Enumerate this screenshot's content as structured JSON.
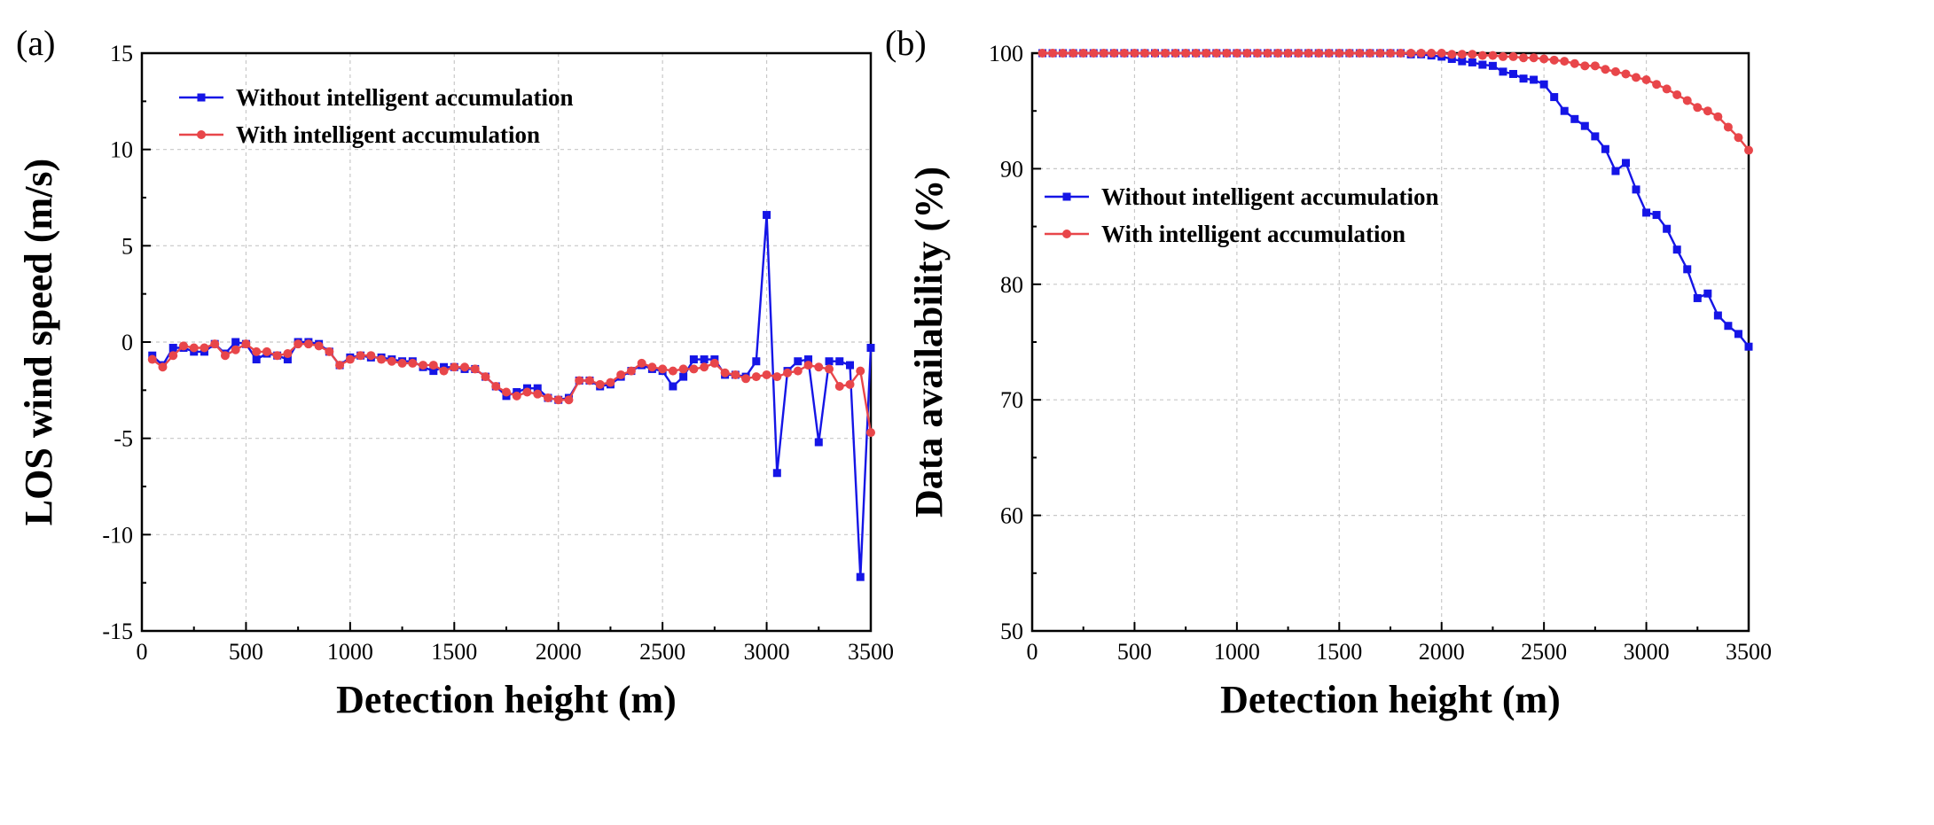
{
  "chart_data": [
    {
      "type": "line",
      "panel_label": "(a)",
      "xlabel": "Detection height (m)",
      "ylabel": "LOS wind speed (m/s)",
      "xlim": [
        0,
        3500
      ],
      "ylim": [
        -15,
        15
      ],
      "xticks": [
        0,
        500,
        1000,
        1500,
        2000,
        2500,
        3000,
        3500
      ],
      "yticks": [
        -15,
        -10,
        -5,
        0,
        5,
        10,
        15
      ],
      "grid": true,
      "legend_position": "top-left",
      "x": [
        50,
        100,
        150,
        200,
        250,
        300,
        350,
        400,
        450,
        500,
        550,
        600,
        650,
        700,
        750,
        800,
        850,
        900,
        950,
        1000,
        1050,
        1100,
        1150,
        1200,
        1250,
        1300,
        1350,
        1400,
        1450,
        1500,
        1550,
        1600,
        1650,
        1700,
        1750,
        1800,
        1850,
        1900,
        1950,
        2000,
        2050,
        2100,
        2150,
        2200,
        2250,
        2300,
        2350,
        2400,
        2450,
        2500,
        2550,
        2600,
        2650,
        2700,
        2750,
        2800,
        2850,
        2900,
        2950,
        3000,
        3050,
        3100,
        3150,
        3200,
        3250,
        3300,
        3350,
        3400,
        3450,
        3500
      ],
      "series": [
        {
          "name": "Without intelligent accumulation",
          "color": "#1515e6",
          "marker": "square",
          "values": [
            -0.7,
            -1.2,
            -0.3,
            -0.3,
            -0.5,
            -0.5,
            -0.1,
            -0.6,
            0.0,
            -0.1,
            -0.9,
            -0.6,
            -0.7,
            -0.9,
            0.0,
            0.0,
            -0.1,
            -0.5,
            -1.2,
            -0.8,
            -0.7,
            -0.8,
            -0.8,
            -0.9,
            -1.0,
            -1.0,
            -1.3,
            -1.5,
            -1.3,
            -1.3,
            -1.4,
            -1.4,
            -1.8,
            -2.3,
            -2.8,
            -2.6,
            -2.4,
            -2.4,
            -2.9,
            -3.0,
            -2.9,
            -2.0,
            -2.0,
            -2.3,
            -2.2,
            -1.8,
            -1.5,
            -1.2,
            -1.4,
            -1.5,
            -2.3,
            -1.8,
            -0.9,
            -0.9,
            -0.9,
            -1.7,
            -1.7,
            -1.8,
            -1.0,
            6.6,
            -6.8,
            -1.5,
            -1.0,
            -0.9,
            -5.2,
            -1.0,
            -1.0,
            -1.2,
            -12.2,
            -0.3
          ]
        },
        {
          "name": "With intelligent accumulation",
          "color": "#e8464a",
          "marker": "circle",
          "values": [
            -0.9,
            -1.3,
            -0.7,
            -0.2,
            -0.3,
            -0.3,
            -0.1,
            -0.7,
            -0.4,
            -0.1,
            -0.5,
            -0.5,
            -0.7,
            -0.6,
            -0.1,
            -0.1,
            -0.2,
            -0.5,
            -1.2,
            -0.9,
            -0.7,
            -0.7,
            -0.9,
            -1.0,
            -1.1,
            -1.1,
            -1.2,
            -1.2,
            -1.5,
            -1.3,
            -1.3,
            -1.4,
            -1.8,
            -2.3,
            -2.6,
            -2.8,
            -2.6,
            -2.7,
            -2.9,
            -3.0,
            -3.0,
            -2.0,
            -2.0,
            -2.2,
            -2.1,
            -1.7,
            -1.5,
            -1.1,
            -1.3,
            -1.4,
            -1.5,
            -1.4,
            -1.4,
            -1.3,
            -1.1,
            -1.6,
            -1.7,
            -1.9,
            -1.8,
            -1.7,
            -1.8,
            -1.6,
            -1.5,
            -1.2,
            -1.3,
            -1.4,
            -2.3,
            -2.2,
            -1.5,
            -4.7
          ]
        }
      ]
    },
    {
      "type": "line",
      "panel_label": "(b)",
      "xlabel": "Detection height (m)",
      "ylabel": "Data availability (%)",
      "xlim": [
        0,
        3500
      ],
      "ylim": [
        50,
        100
      ],
      "xticks": [
        0,
        500,
        1000,
        1500,
        2000,
        2500,
        3000,
        3500
      ],
      "yticks": [
        50,
        60,
        70,
        80,
        90,
        100
      ],
      "grid": true,
      "legend_position": "middle-left",
      "x": [
        50,
        100,
        150,
        200,
        250,
        300,
        350,
        400,
        450,
        500,
        550,
        600,
        650,
        700,
        750,
        800,
        850,
        900,
        950,
        1000,
        1050,
        1100,
        1150,
        1200,
        1250,
        1300,
        1350,
        1400,
        1450,
        1500,
        1550,
        1600,
        1650,
        1700,
        1750,
        1800,
        1850,
        1900,
        1950,
        2000,
        2050,
        2100,
        2150,
        2200,
        2250,
        2300,
        2350,
        2400,
        2450,
        2500,
        2550,
        2600,
        2650,
        2700,
        2750,
        2800,
        2850,
        2900,
        2950,
        3000,
        3050,
        3100,
        3150,
        3200,
        3250,
        3300,
        3350,
        3400,
        3450,
        3500
      ],
      "series": [
        {
          "name": "Without intelligent accumulation",
          "color": "#1515e6",
          "marker": "square",
          "values": [
            100,
            100,
            100,
            100,
            100,
            100,
            100,
            100,
            100,
            100,
            100,
            100,
            100,
            100,
            100,
            100,
            100,
            100,
            100,
            100,
            100,
            100,
            100,
            100,
            100,
            100,
            100,
            100,
            100,
            100,
            100,
            100,
            100,
            100,
            100,
            100,
            99.9,
            99.9,
            99.8,
            99.7,
            99.5,
            99.3,
            99.2,
            99.0,
            98.9,
            98.4,
            98.2,
            97.8,
            97.7,
            97.3,
            96.2,
            95.0,
            94.3,
            93.7,
            92.8,
            91.7,
            89.8,
            90.5,
            88.2,
            86.2,
            86.0,
            84.8,
            83.0,
            81.3,
            78.8,
            79.2,
            77.3,
            76.4,
            75.7,
            74.6
          ]
        },
        {
          "name": "With intelligent accumulation",
          "color": "#e8464a",
          "marker": "circle",
          "values": [
            100,
            100,
            100,
            100,
            100,
            100,
            100,
            100,
            100,
            100,
            100,
            100,
            100,
            100,
            100,
            100,
            100,
            100,
            100,
            100,
            100,
            100,
            100,
            100,
            100,
            100,
            100,
            100,
            100,
            100,
            100,
            100,
            100,
            100,
            100,
            100,
            100,
            100,
            100,
            100,
            99.9,
            99.9,
            99.9,
            99.8,
            99.8,
            99.7,
            99.7,
            99.6,
            99.6,
            99.5,
            99.4,
            99.3,
            99.1,
            98.9,
            98.9,
            98.6,
            98.4,
            98.2,
            97.9,
            97.7,
            97.3,
            96.9,
            96.4,
            95.9,
            95.3,
            95.0,
            94.5,
            93.6,
            92.7,
            91.6
          ]
        }
      ]
    }
  ]
}
